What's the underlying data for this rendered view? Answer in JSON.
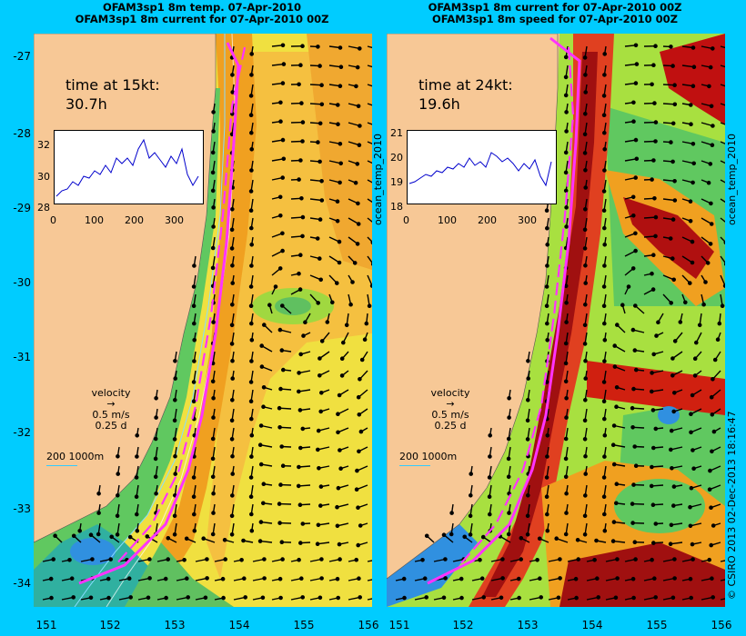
{
  "left": {
    "title1": "OFAM3sp1 8m temp. 07-Apr-2010",
    "title2": "OFAM3sp1 8m current for 07-Apr-2010 00Z",
    "time_label": "time at 15kt:",
    "time_value": "30.7h",
    "inset": {
      "yticks": [
        "32",
        "30",
        "28"
      ],
      "xticks": [
        "0",
        "100",
        "200",
        "300"
      ]
    },
    "legend": {
      "velocity": "velocity",
      "speed": "0.5 m/s",
      "duration": "0.25 d"
    },
    "scale": "200  1000m"
  },
  "right": {
    "title1": "OFAM3sp1 8m current for 07-Apr-2010 00Z",
    "title2": "OFAM3sp1 8m speed for 07-Apr-2010 00Z",
    "time_label": "time at 24kt:",
    "time_value": "19.6h",
    "inset": {
      "yticks": [
        "21",
        "20",
        "19",
        "18"
      ],
      "xticks": [
        "0",
        "100",
        "200",
        "300"
      ]
    },
    "legend": {
      "velocity": "velocity",
      "speed": "0.5 m/s",
      "duration": "0.25 d"
    },
    "scale": "200  1000m"
  },
  "lat_ticks": [
    "-27",
    "-28",
    "-29",
    "-30",
    "-31",
    "-32",
    "-33",
    "-34"
  ],
  "lon_ticks": [
    "151",
    "152",
    "153",
    "154",
    "155",
    "156"
  ],
  "side_labels": {
    "inset_var": "ocean_temp_2010",
    "credit": "© CSIRO 2013  02-Dec-2013 18:16:47"
  },
  "colors": {
    "background": "#00ccff",
    "land": "#f7c896",
    "route": "#ff33ff"
  }
}
